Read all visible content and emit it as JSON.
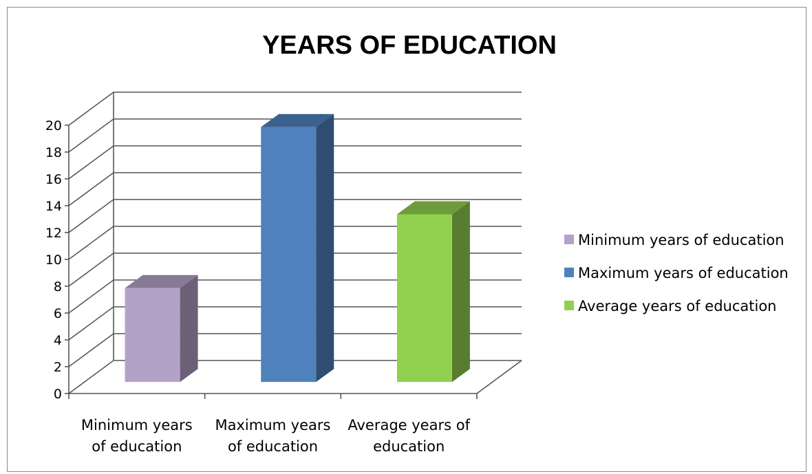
{
  "chart_data": {
    "type": "bar",
    "title": "YEARS OF EDUCATION",
    "categories": [
      "Minimum years of education",
      "Maximum years of education",
      "Average years of education"
    ],
    "category_labels": [
      [
        "Minimum years",
        "of education"
      ],
      [
        "Maximum years",
        "of education"
      ],
      [
        "Average years of",
        "education"
      ]
    ],
    "values": [
      7,
      19,
      12.5
    ],
    "colors": [
      "#b3a2c7",
      "#4f81bd",
      "#92d050"
    ],
    "legend": [
      "Minimum years of education",
      "Maximum years of education",
      "Average years of education"
    ],
    "legend_position": "right",
    "ylim": [
      0,
      20
    ],
    "yticks": [
      "0",
      "2",
      "4",
      "6",
      "8",
      "10",
      "12",
      "14",
      "16",
      "18",
      "20"
    ],
    "grid": true,
    "style": "3d"
  }
}
